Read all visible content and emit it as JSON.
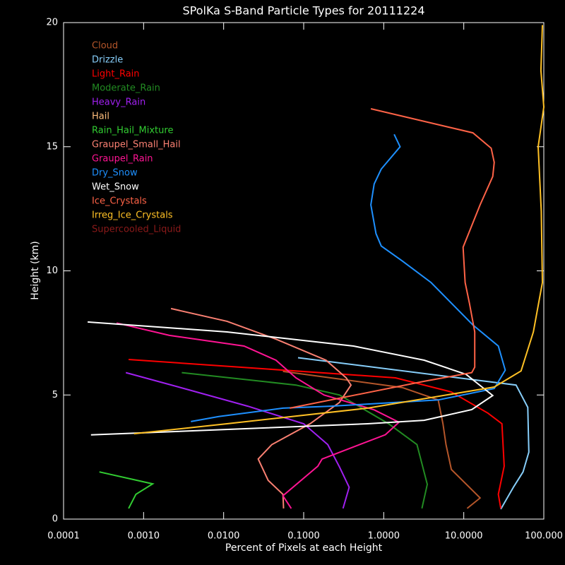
{
  "chart_data": {
    "type": "line",
    "title": "SPolKa S-Band Particle Types for 20111224",
    "x_label": "Percent of Pixels at each Height",
    "y_label": "Height (km)",
    "x_scale": "log",
    "xlim": [
      0.0001,
      100
    ],
    "xticks": [
      {
        "value": 0.0001,
        "label": "0.0001"
      },
      {
        "value": 0.001,
        "label": "0.0010"
      },
      {
        "value": 0.01,
        "label": "0.0100"
      },
      {
        "value": 0.1,
        "label": "0.1000"
      },
      {
        "value": 1,
        "label": "1.0000"
      },
      {
        "value": 10,
        "label": "10.0000"
      },
      {
        "value": 100,
        "label": "100.000"
      }
    ],
    "ylim": [
      0,
      20
    ],
    "yticks": [
      0,
      5,
      10,
      15,
      20
    ],
    "series": [
      {
        "name": "Cloud",
        "color": "#b5562a",
        "x": [
          0.055,
          1.7,
          4.8,
          5.5,
          6,
          7,
          16,
          11
        ],
        "values": [
          5.95,
          5.3,
          4.8,
          3.84,
          3.0,
          2.0,
          0.85,
          0.43
        ]
      },
      {
        "name": "Drizzle",
        "color": "#87cefa",
        "x": [
          0.085,
          45,
          63,
          65,
          55,
          42,
          29
        ],
        "values": [
          6.5,
          5.4,
          4.5,
          2.7,
          1.9,
          1.3,
          0.4
        ]
      },
      {
        "name": "Light_Rain",
        "color": "#ff0000",
        "x": [
          0.00065,
          1.4,
          7,
          20,
          30,
          32,
          27,
          29
        ],
        "values": [
          6.43,
          5.69,
          5.12,
          4.27,
          3.84,
          2.13,
          1.0,
          0.43
        ]
      },
      {
        "name": "Moderate_Rain",
        "color": "#228b22",
        "x": [
          0.003,
          0.08,
          0.28,
          1.15,
          2.6,
          3.5,
          3.0
        ],
        "values": [
          5.9,
          5.4,
          5.0,
          3.84,
          3.0,
          1.4,
          0.43
        ]
      },
      {
        "name": "Heavy_Rain",
        "color": "#a020f0",
        "x": [
          0.0006,
          0.0032,
          0.02,
          0.1,
          0.2,
          0.28,
          0.37,
          0.31
        ],
        "values": [
          5.9,
          5.26,
          4.55,
          3.84,
          3.0,
          2.1,
          1.28,
          0.43
        ]
      },
      {
        "name": "Hail",
        "color": "#ffbe7d",
        "x": [],
        "values": []
      },
      {
        "name": "Rain_Hail_Mixture",
        "color": "#32cd32",
        "x": [
          0.00028,
          0.0013,
          0.0008,
          0.00065
        ],
        "values": [
          1.9,
          1.42,
          1.0,
          0.43
        ]
      },
      {
        "name": "Graupel_Small_Hail",
        "color": "#fa8072",
        "x": [
          0.0022,
          0.011,
          0.045,
          0.19,
          0.34,
          0.39,
          0.28,
          0.12,
          0.04,
          0.027,
          0.036,
          0.055,
          0.056
        ],
        "values": [
          8.48,
          7.97,
          7.25,
          6.4,
          5.69,
          5.4,
          4.7,
          3.84,
          3.0,
          2.42,
          1.56,
          1.0,
          0.43
        ]
      },
      {
        "name": "Graupel_Rain",
        "color": "#ff1493",
        "x": [
          0.00046,
          0.0021,
          0.018,
          0.045,
          0.08,
          0.18,
          0.76,
          1.55,
          1.05,
          0.17,
          0.15,
          0.055,
          0.07
        ],
        "values": [
          7.9,
          7.4,
          6.97,
          6.4,
          5.69,
          5.0,
          4.4,
          3.9,
          3.4,
          2.42,
          2.13,
          0.94,
          0.43
        ]
      },
      {
        "name": "Dry_Snow",
        "color": "#1e90ff",
        "x": [
          1.35,
          1.6,
          0.93,
          0.76,
          0.69,
          0.8,
          0.93,
          1.7,
          3.9,
          7.1,
          13,
          27,
          33,
          24,
          4.8,
          0.22,
          0.055,
          0.0087,
          0.0039
        ],
        "values": [
          15.5,
          15.0,
          14.1,
          13.5,
          12.66,
          11.5,
          11.0,
          10.4,
          9.53,
          8.68,
          7.82,
          6.97,
          6.0,
          5.26,
          4.8,
          4.55,
          4.47,
          4.13,
          3.93
        ]
      },
      {
        "name": "Wet_Snow",
        "color": "#ffffff",
        "x": [
          0.0002,
          0.011,
          0.42,
          3.2,
          10.7,
          23,
          12.6,
          3.2,
          0.63,
          0.00022
        ],
        "values": [
          7.94,
          7.54,
          6.97,
          6.4,
          5.83,
          4.98,
          4.41,
          3.98,
          3.84,
          3.39
        ]
      },
      {
        "name": "Ice_Crystals",
        "color": "#ff6347",
        "x": [
          0.69,
          13,
          22,
          24,
          23,
          16,
          9.8,
          10.4,
          11.8,
          13.7,
          13.7,
          12.6,
          3.2,
          0.08,
          0.067
        ],
        "values": [
          16.53,
          15.56,
          14.94,
          14.37,
          13.8,
          12.66,
          10.95,
          9.53,
          8.68,
          7.54,
          6.12,
          5.9,
          5.55,
          4.52,
          4.47
        ]
      },
      {
        "name": "Irreg_Ice_Crystals",
        "color": "#ffc125",
        "x": [
          96,
          92,
          100,
          85,
          93,
          96,
          74,
          52,
          24,
          0.63,
          0.011,
          0.00076
        ],
        "values": [
          19.9,
          18.07,
          16.6,
          15.0,
          12.4,
          9.53,
          7.54,
          5.97,
          5.32,
          4.47,
          3.84,
          3.44
        ]
      },
      {
        "name": "Supercooled_Liquid",
        "color": "#8b1a1a",
        "x": [],
        "values": []
      }
    ]
  }
}
